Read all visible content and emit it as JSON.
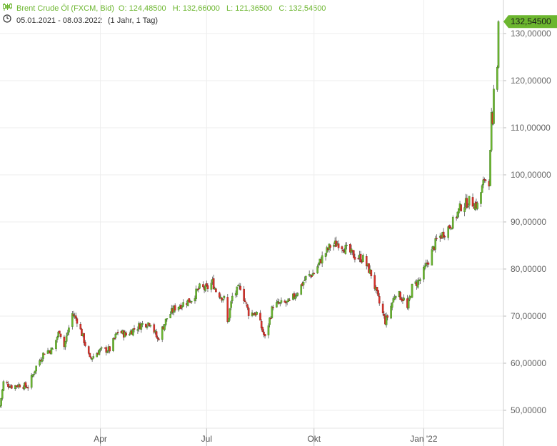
{
  "header": {
    "instrument": "Brent Crude Öl (FXCM, Bid)",
    "ohlc": "O: 124,48500   H: 132,66000   L: 121,36500   C: 132,54500",
    "date_range": "05.01.2021 - 08.03.2022",
    "period": "(1 Jahr, 1 Tag)",
    "icons": [
      "candlestick-icon",
      "clock-icon"
    ]
  },
  "colors": {
    "up": "#6cb62f",
    "down": "#d9322b",
    "last_price_bg": "#6cb62f",
    "grid": "#eeeeee"
  },
  "chart_data": {
    "type": "candlestick",
    "title": "Brent Crude Öl (FXCM, Bid)",
    "last_price_label": "132,54500",
    "y_ticks": [
      50,
      60,
      70,
      80,
      90,
      100,
      110,
      120,
      130
    ],
    "y_tick_labels": [
      "50,00000",
      "60,00000",
      "70,00000",
      "80,00000",
      "90,00000",
      "100,00000",
      "110,00000",
      "120,00000",
      "130,00000"
    ],
    "x_ticks": [
      {
        "label": "Apr",
        "date": "2021-04-01"
      },
      {
        "label": "Jul",
        "date": "2021-07-01"
      },
      {
        "label": "Okt",
        "date": "2021-10-01"
      },
      {
        "label": "Jan '22",
        "date": "2022-01-03"
      }
    ],
    "ylim": [
      46,
      133
    ],
    "x_start": "2021-01-05",
    "x_end": "2022-03-08",
    "close_path": [
      [
        "2021-01-05",
        51.0
      ],
      [
        "2021-01-08",
        55.9
      ],
      [
        "2021-01-15",
        55.1
      ],
      [
        "2021-01-22",
        55.4
      ],
      [
        "2021-01-29",
        55.0
      ],
      [
        "2021-02-05",
        59.3
      ],
      [
        "2021-02-12",
        62.4
      ],
      [
        "2021-02-19",
        62.9
      ],
      [
        "2021-02-25",
        67.0
      ],
      [
        "2021-03-01",
        63.6
      ],
      [
        "2021-03-08",
        70.5
      ],
      [
        "2021-03-12",
        69.2
      ],
      [
        "2021-03-18",
        64.8
      ],
      [
        "2021-03-23",
        60.8
      ],
      [
        "2021-03-31",
        62.7
      ],
      [
        "2021-04-09",
        62.9
      ],
      [
        "2021-04-16",
        66.8
      ],
      [
        "2021-04-23",
        66.0
      ],
      [
        "2021-04-30",
        67.3
      ],
      [
        "2021-05-07",
        68.3
      ],
      [
        "2021-05-14",
        68.7
      ],
      [
        "2021-05-20",
        65.0
      ],
      [
        "2021-05-28",
        69.6
      ],
      [
        "2021-06-04",
        71.8
      ],
      [
        "2021-06-11",
        72.7
      ],
      [
        "2021-06-18",
        73.6
      ],
      [
        "2021-06-25",
        76.0
      ],
      [
        "2021-07-01",
        75.8
      ],
      [
        "2021-07-06",
        77.2
      ],
      [
        "2021-07-09",
        75.4
      ],
      [
        "2021-07-16",
        73.6
      ],
      [
        "2021-07-19",
        68.6
      ],
      [
        "2021-07-23",
        74.1
      ],
      [
        "2021-07-30",
        76.3
      ],
      [
        "2021-08-06",
        70.7
      ],
      [
        "2021-08-13",
        70.6
      ],
      [
        "2021-08-20",
        65.3
      ],
      [
        "2021-08-27",
        72.4
      ],
      [
        "2021-09-03",
        72.6
      ],
      [
        "2021-09-10",
        72.9
      ],
      [
        "2021-09-17",
        75.3
      ],
      [
        "2021-09-24",
        78.1
      ],
      [
        "2021-10-01",
        79.2
      ],
      [
        "2021-10-08",
        82.4
      ],
      [
        "2021-10-15",
        84.9
      ],
      [
        "2021-10-22",
        85.5
      ],
      [
        "2021-10-29",
        84.1
      ],
      [
        "2021-11-05",
        82.7
      ],
      [
        "2021-11-12",
        82.2
      ],
      [
        "2021-11-19",
        78.9
      ],
      [
        "2021-11-26",
        72.7
      ],
      [
        "2021-12-01",
        68.9
      ],
      [
        "2021-12-03",
        69.9
      ],
      [
        "2021-12-10",
        75.1
      ],
      [
        "2021-12-17",
        73.5
      ],
      [
        "2021-12-20",
        71.5
      ],
      [
        "2021-12-24",
        76.1
      ],
      [
        "2021-12-31",
        77.8
      ],
      [
        "2022-01-07",
        81.8
      ],
      [
        "2022-01-14",
        86.1
      ],
      [
        "2022-01-21",
        87.9
      ],
      [
        "2022-01-28",
        90.0
      ],
      [
        "2022-02-04",
        93.3
      ],
      [
        "2022-02-11",
        94.4
      ],
      [
        "2022-02-18",
        93.5
      ],
      [
        "2022-02-24",
        99.1
      ],
      [
        "2022-02-28",
        97.97
      ],
      [
        "2022-03-01",
        104.97
      ],
      [
        "2022-03-02",
        112.9
      ],
      [
        "2022-03-03",
        110.5
      ],
      [
        "2022-03-04",
        118.1
      ],
      [
        "2022-03-07",
        123.2
      ],
      [
        "2022-03-08",
        132.545
      ]
    ]
  }
}
